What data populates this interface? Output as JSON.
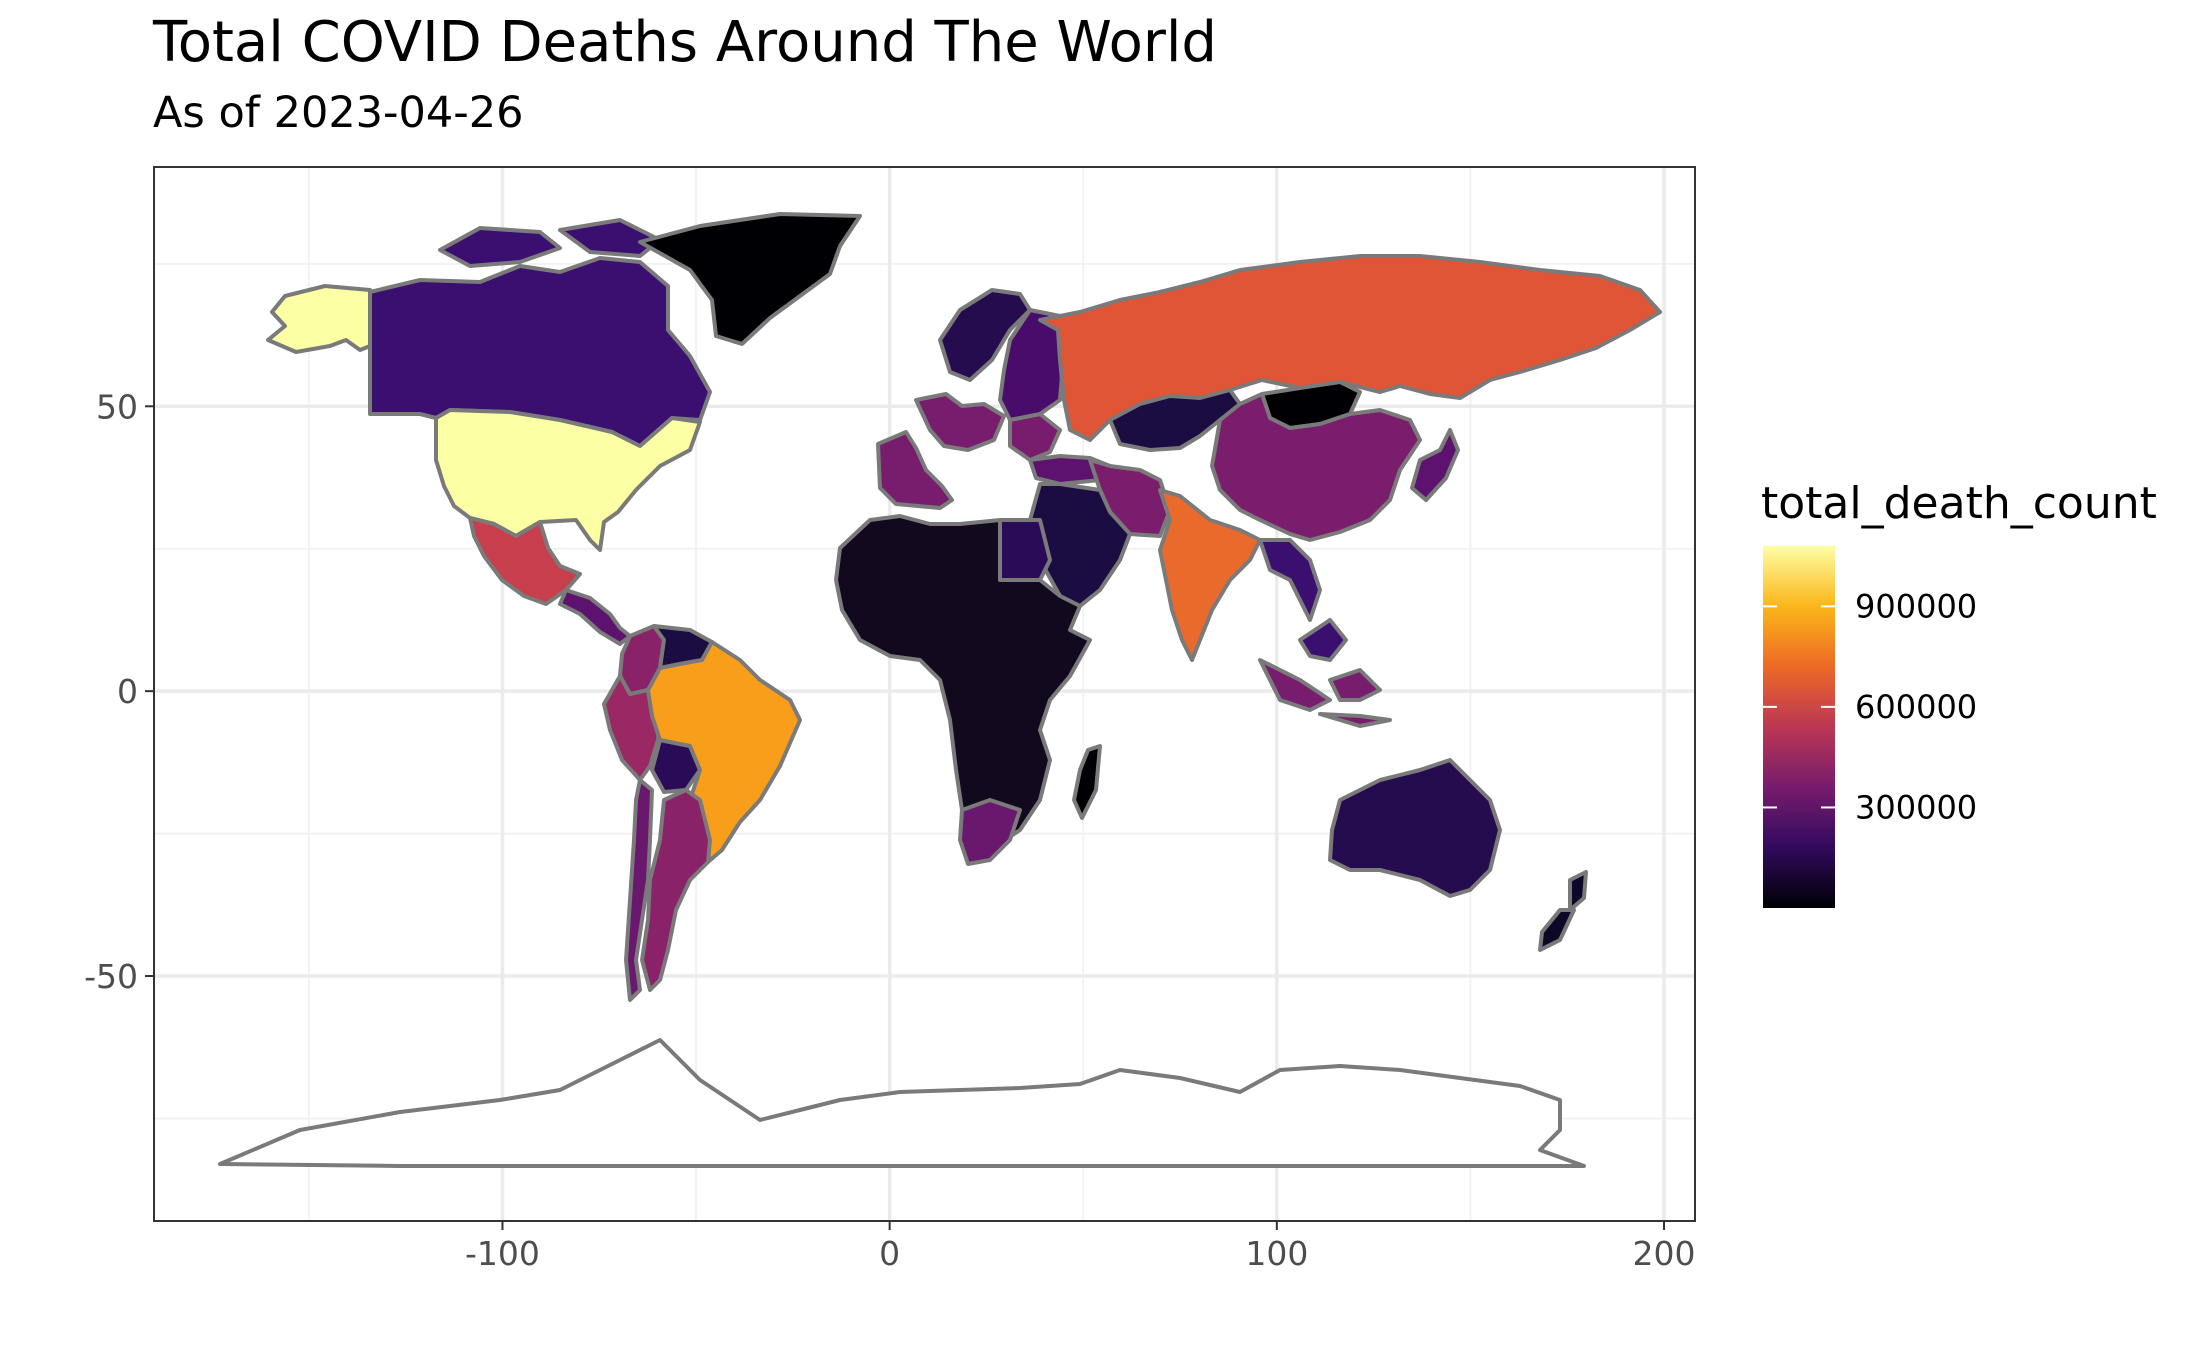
{
  "title": "Total COVID Deaths Around The World",
  "subtitle": "As of 2023-04-26",
  "axes": {
    "x": {
      "range": [
        -190,
        208
      ],
      "ticks": [
        -100,
        0,
        100,
        200
      ],
      "label": ""
    },
    "y": {
      "range": [
        -93,
        92
      ],
      "ticks": [
        50,
        0,
        -50
      ],
      "label": ""
    },
    "grid": true
  },
  "legend": {
    "title": "total_death_count",
    "placement": "right",
    "breaks": [
      "900000",
      "600000",
      "300000"
    ],
    "colors": [
      "#000004",
      "#320a5e",
      "#781c6d",
      "#bb3754",
      "#ed6925",
      "#fbb61a",
      "#fcffa4"
    ]
  },
  "colors": {
    "border": "#7a7a7a",
    "no_data": "#ffffff",
    "panel_border": "#333333",
    "grid": "#ebebeb"
  },
  "chart_data": {
    "type": "choropleth",
    "variable": "total_death_count",
    "regions": [
      {
        "name": "Alaska (USA)",
        "color": "#fcffa4"
      },
      {
        "name": "United States",
        "color": "#fcffa4"
      },
      {
        "name": "Canada",
        "color": "#3b0f70"
      },
      {
        "name": "Greenland",
        "color": "#000004"
      },
      {
        "name": "Mexico",
        "color": "#c73e4c"
      },
      {
        "name": "Central America",
        "color": "#5c126e"
      },
      {
        "name": "Brazil",
        "color": "#f89e1a"
      },
      {
        "name": "Peru",
        "color": "#9a2865"
      },
      {
        "name": "Colombia",
        "color": "#8a226a"
      },
      {
        "name": "Venezuela",
        "color": "#1b0c41"
      },
      {
        "name": "Argentina",
        "color": "#8a226a"
      },
      {
        "name": "Chile",
        "color": "#6a176e"
      },
      {
        "name": "Bolivia",
        "color": "#2a0b57"
      },
      {
        "name": "Russia",
        "color": "#e05536"
      },
      {
        "name": "India",
        "color": "#ea6a2b"
      },
      {
        "name": "China",
        "color": "#7a1d6d"
      },
      {
        "name": "Western Europe",
        "color": "#781c6d"
      },
      {
        "name": "Eastern Europe",
        "color": "#4a0c6b"
      },
      {
        "name": "Scandinavia",
        "color": "#250c4e"
      },
      {
        "name": "Iran",
        "color": "#7a1d6d"
      },
      {
        "name": "Turkey",
        "color": "#5c126e"
      },
      {
        "name": "Africa",
        "color": "#12091f"
      },
      {
        "name": "South Africa",
        "color": "#6a176e"
      },
      {
        "name": "Egypt",
        "color": "#2a0b57"
      },
      {
        "name": "Middle East",
        "color": "#1b0c41"
      },
      {
        "name": "Kazakhstan",
        "color": "#1b0c41"
      },
      {
        "name": "Mongolia",
        "color": "#000004"
      },
      {
        "name": "Indonesia",
        "color": "#781c6d"
      },
      {
        "name": "Southeast Asia",
        "color": "#3b0f70"
      },
      {
        "name": "Australia",
        "color": "#250c4e"
      },
      {
        "name": "Japan",
        "color": "#5c126e"
      },
      {
        "name": "New Zealand",
        "color": "#0d0828"
      },
      {
        "name": "Madagascar",
        "color": "#000004"
      },
      {
        "name": "Antarctica",
        "color": "#ffffff"
      }
    ]
  }
}
